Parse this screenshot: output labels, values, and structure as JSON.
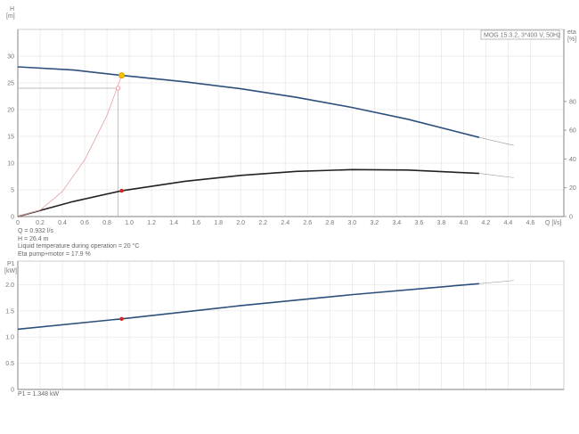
{
  "chart_data": [
    {
      "type": "line",
      "title_box": "MOG 15.3.2, 3*400 V, 50Hz",
      "xlabel": "Q [l/s]",
      "ylabel_left": "H\n[m]",
      "ylabel_right": "eta\n[%]",
      "xlim": [
        0,
        4.9
      ],
      "ylim_left": [
        0,
        35
      ],
      "ylim_right": [
        0,
        130
      ],
      "xticks": [
        "0",
        "0.2",
        "0.4",
        "0.6",
        "0.8",
        "1.0",
        "1.2",
        "1.4",
        "1.6",
        "1.8",
        "2.0",
        "2.2",
        "2.4",
        "2.6",
        "2.8",
        "3.0",
        "3.2",
        "3.4",
        "3.6",
        "3.8",
        "4.0",
        "4.2",
        "4.4",
        "4.6"
      ],
      "yticks_left": [
        "0",
        "5",
        "10",
        "15",
        "20",
        "25",
        "30"
      ],
      "yticks_right": [
        "0",
        "20",
        "40",
        "60",
        "80"
      ],
      "grid": true,
      "series": [
        {
          "id": "H",
          "axis": "left",
          "color": "#2d4f7c",
          "x": [
            0,
            0.5,
            0.932,
            1.5,
            2.0,
            2.5,
            3.0,
            3.5,
            4.14
          ],
          "y": [
            28,
            27.4,
            26.4,
            25.2,
            23.9,
            22.3,
            20.4,
            18.2,
            14.8
          ],
          "ext_x": [
            4.14,
            4.45
          ],
          "ext_y": [
            14.8,
            13.3
          ]
        },
        {
          "id": "eta",
          "axis": "right",
          "color": "#222222",
          "x": [
            0,
            0.5,
            0.932,
            1.5,
            2.0,
            2.5,
            3.0,
            3.5,
            4.14
          ],
          "y": [
            0,
            10.5,
            17.9,
            24.5,
            28.6,
            31.4,
            32.6,
            32.3,
            30
          ],
          "ext_x": [
            4.14,
            4.45
          ],
          "ext_y": [
            30,
            27
          ]
        },
        {
          "id": "system",
          "axis": "left",
          "color": "#e8a0a0",
          "x": [
            0,
            0.2,
            0.4,
            0.6,
            0.8,
            0.932
          ],
          "y": [
            0,
            1.2,
            4.7,
            10.6,
            18.9,
            26.4
          ]
        }
      ],
      "duty_point": {
        "q": 0.932,
        "h": 26.4,
        "eta": 17.9,
        "color": "#f5c400"
      },
      "required_point": {
        "q": 0.9,
        "h": 24
      },
      "readout": [
        "Q = 0.932 l/s",
        "H = 26.4 m",
        "Liquid temperature during operation = 20 °C",
        "Eta pump+motor = 17.9 %"
      ]
    },
    {
      "type": "line",
      "ylabel": "P1\n[kW]",
      "xlim": [
        0,
        4.9
      ],
      "ylim": [
        0,
        2.45
      ],
      "yticks": [
        "0",
        "0.5",
        "1.0",
        "1.5",
        "2.0"
      ],
      "grid": true,
      "series": [
        {
          "id": "P1",
          "color": "#2d4f7c",
          "x": [
            0,
            0.932,
            2.0,
            3.0,
            4.14
          ],
          "y": [
            1.15,
            1.348,
            1.6,
            1.81,
            2.02
          ],
          "ext_x": [
            4.14,
            4.45
          ],
          "ext_y": [
            2.02,
            2.08
          ]
        }
      ],
      "point": {
        "q": 0.932,
        "p1": 1.348,
        "color": "#e02020"
      },
      "readout": "P1 = 1.348 kW"
    }
  ]
}
